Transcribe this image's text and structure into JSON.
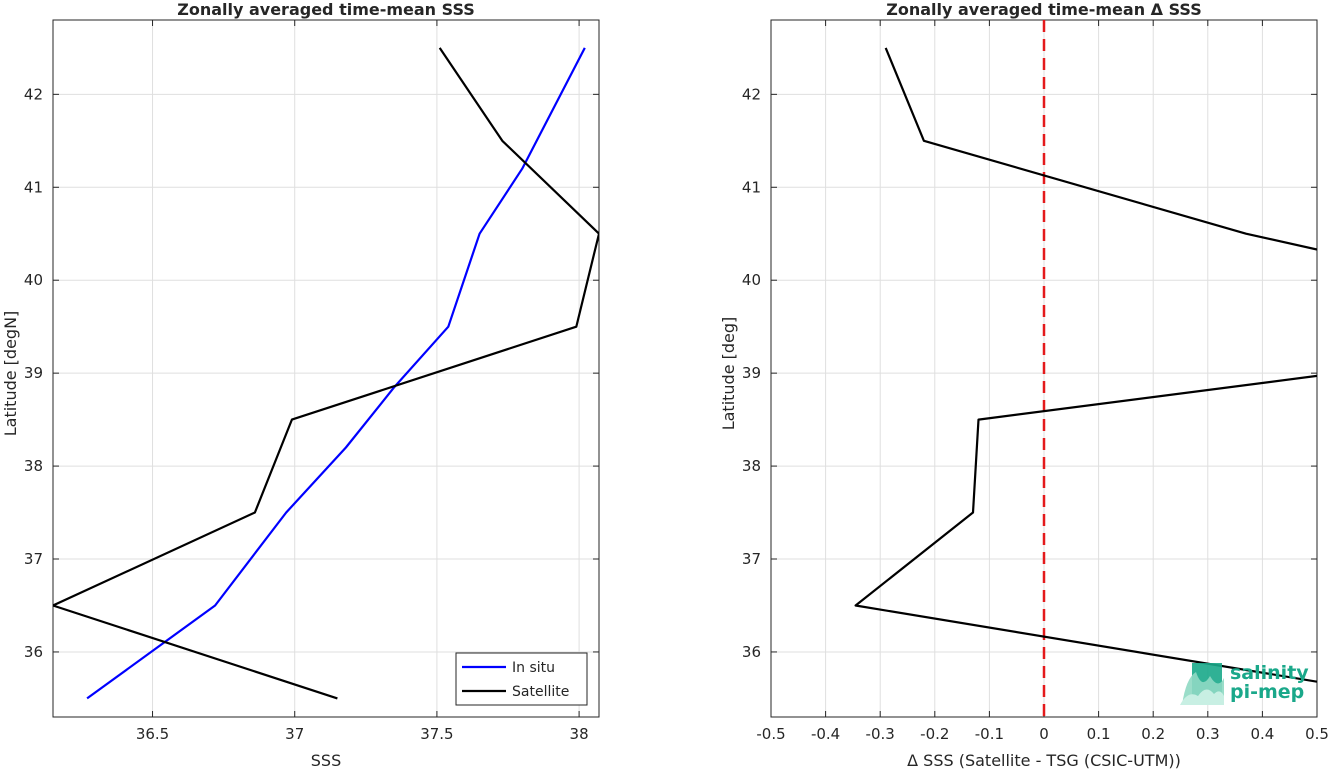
{
  "chart_data": [
    {
      "type": "line",
      "title": "Zonally averaged time-mean SSS",
      "xlabel": "SSS",
      "ylabel": "Latitude [degN]",
      "xlim": [
        36.15,
        38.07
      ],
      "ylim": [
        35.3,
        42.8
      ],
      "xticks": [
        36.5,
        37,
        37.5,
        38
      ],
      "xtick_labels": [
        "36.5",
        "37",
        "37.5",
        "38"
      ],
      "yticks": [
        36,
        37,
        38,
        39,
        40,
        41,
        42
      ],
      "ytick_labels": [
        "36",
        "37",
        "38",
        "39",
        "40",
        "41",
        "42"
      ],
      "grid": true,
      "legend_position": "bottom-right",
      "series": [
        {
          "name": "In situ",
          "color": "#0000ff",
          "x": [
            36.27,
            36.72,
            36.97,
            37.18,
            37.35,
            37.54,
            37.65,
            37.8,
            38.02
          ],
          "y": [
            35.5,
            36.5,
            37.5,
            38.2,
            38.85,
            39.5,
            40.5,
            41.2,
            42.5
          ]
        },
        {
          "name": "Satellite",
          "color": "#000000",
          "x": [
            37.15,
            36.15,
            36.86,
            36.99,
            37.99,
            38.07,
            37.73,
            37.51
          ],
          "y": [
            35.5,
            36.5,
            37.5,
            38.5,
            39.5,
            40.5,
            41.5,
            42.5
          ]
        }
      ]
    },
    {
      "type": "line",
      "title": "Zonally averaged time-mean Δ SSS",
      "xlabel": "Δ SSS (Satellite - TSG (CSIC-UTM))",
      "ylabel": "Latitude [deg]",
      "xlim": [
        -0.5,
        0.5
      ],
      "ylim": [
        35.3,
        42.8
      ],
      "xticks": [
        -0.5,
        -0.4,
        -0.3,
        -0.2,
        -0.1,
        0,
        0.1,
        0.2,
        0.3,
        0.4,
        0.5
      ],
      "xtick_labels": [
        "-0.5",
        "-0.4",
        "-0.3",
        "-0.2",
        "-0.1",
        "0",
        "0.1",
        "0.2",
        "0.3",
        "0.4",
        "0.5"
      ],
      "yticks": [
        36,
        37,
        38,
        39,
        40,
        41,
        42
      ],
      "ytick_labels": [
        "36",
        "37",
        "38",
        "39",
        "40",
        "41",
        "42"
      ],
      "grid": true,
      "reference_line": {
        "x": 0,
        "color": "#e41a1c",
        "style": "dashed"
      },
      "series": [
        {
          "color": "#000000",
          "x": [
            0.5,
            -0.345,
            -0.13,
            -0.12,
            0.5
          ],
          "y": [
            35.68,
            36.5,
            37.5,
            38.5,
            38.97
          ]
        },
        {
          "color": "#000000",
          "x": [
            0.5,
            0.37,
            -0.22,
            -0.29
          ],
          "y": [
            40.33,
            40.5,
            41.5,
            42.5
          ]
        }
      ]
    }
  ],
  "logo": {
    "line1": "salinity",
    "line2": "pi-mep",
    "color": "#1aa88a"
  }
}
